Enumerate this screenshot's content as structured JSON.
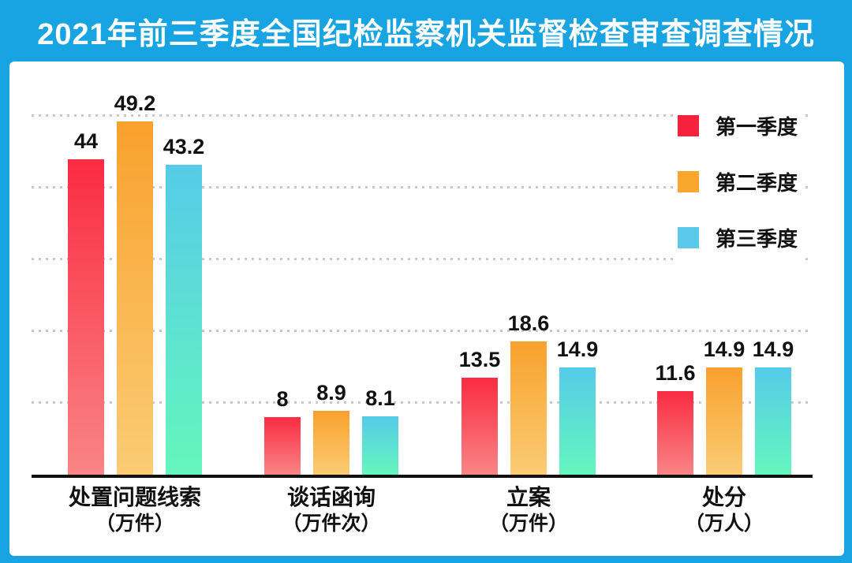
{
  "title": "2021年前三季度全国纪检监察机关监督检查审查调查情况",
  "colors": {
    "background_blue": "#18A4E3",
    "card_white": "#ffffff",
    "axis_black": "#111111",
    "gridline_gray": "#c9c9c9"
  },
  "legend": [
    {
      "label": "第一季度",
      "color": "#F5213D"
    },
    {
      "label": "第二季度",
      "color": "#F9A62F"
    },
    {
      "label": "第三季度",
      "color": "#5BC9EA"
    }
  ],
  "chart_data": {
    "type": "bar",
    "title": "2021年前三季度全国纪检监察机关监督检查审查调查情况",
    "categories": [
      {
        "name": "处置问题线索",
        "unit": "（万件）"
      },
      {
        "name": "谈话函询",
        "unit": "（万件次）"
      },
      {
        "name": "立案",
        "unit": "（万件）"
      },
      {
        "name": "处分",
        "unit": "（万人）"
      }
    ],
    "series": [
      {
        "name": "第一季度",
        "values": [
          44,
          8,
          13.5,
          11.6
        ],
        "gradient": [
          "#FA2B43",
          "#F98585"
        ]
      },
      {
        "name": "第二季度",
        "values": [
          49.2,
          8.9,
          18.6,
          14.9
        ],
        "gradient": [
          "#F9A12D",
          "#FACC74"
        ]
      },
      {
        "name": "第三季度",
        "values": [
          43.2,
          8.1,
          14.9,
          14.9
        ],
        "gradient": [
          "#55CBE8",
          "#65F6BD"
        ]
      }
    ],
    "ylim": [
      0,
      55
    ],
    "gridline_values": [
      10,
      20,
      30,
      40,
      50
    ],
    "grid": true,
    "legend_position": "top-right"
  }
}
